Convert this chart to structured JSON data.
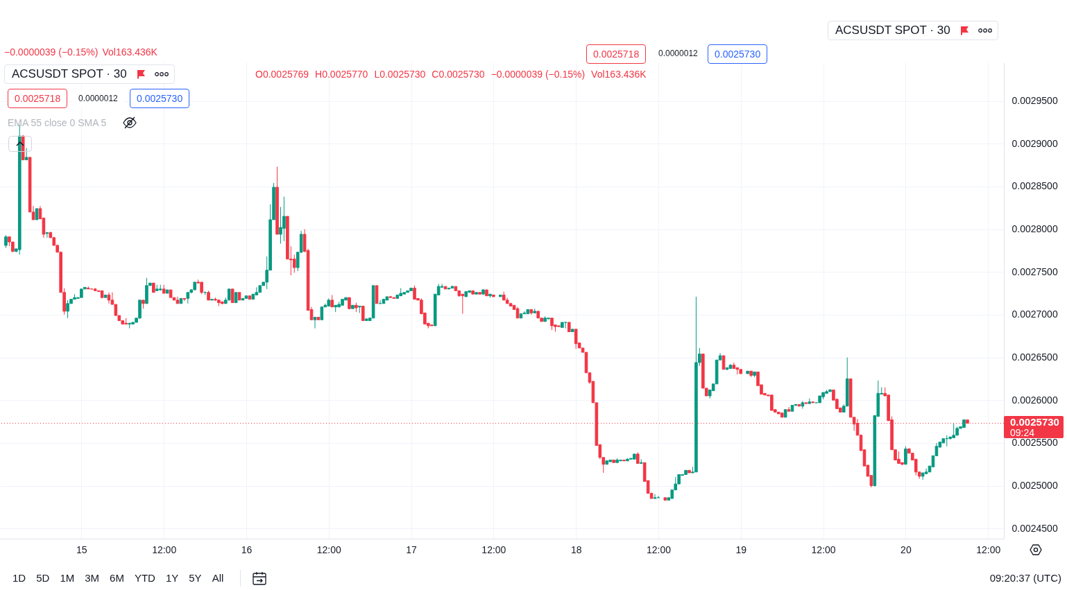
{
  "chart_data": {
    "type": "candlestick",
    "title": "ACSUSDT SPOT · 30",
    "x": [
      "--03-14T13:00",
      "--03-14T13:30",
      "--03-14T14:00",
      "--03-14T14:30",
      "--03-14T15:00",
      "--03-14T15:30",
      "--03-14T16:00",
      "--03-14T16:30",
      "--03-14T17:00",
      "--03-14T17:30",
      "--03-14T18:00",
      "--03-14T18:30",
      "--03-14T19:00",
      "--03-14T19:30",
      "--03-14T20:00",
      "--03-14T20:30",
      "--03-14T21:00",
      "--03-14T21:30",
      "--03-14T22:00",
      "--03-14T22:30",
      "--03-14T23:00",
      "--03-14T23:30",
      "--03-15T00:00",
      "--03-15T00:30",
      "--03-15T01:00",
      "--03-15T01:30",
      "--03-15T02:00",
      "--03-15T02:30",
      "--03-15T03:00",
      "--03-15T03:30",
      "--03-15T04:00",
      "--03-15T04:30",
      "--03-15T05:00",
      "--03-15T05:30",
      "--03-15T06:00",
      "--03-15T06:30",
      "--03-15T07:00",
      "--03-15T07:30",
      "--03-15T08:00",
      "--03-15T08:30",
      "--03-15T09:00",
      "--03-15T09:30",
      "--03-15T10:00",
      "--03-15T10:30",
      "--03-15T11:00",
      "--03-15T11:30",
      "--03-15T12:00",
      "--03-15T12:30",
      "--03-15T13:00",
      "--03-15T13:30",
      "--03-15T14:00",
      "--03-15T14:30",
      "--03-15T15:00",
      "--03-15T15:30",
      "--03-15T16:00",
      "--03-15T16:30",
      "--03-15T17:00",
      "--03-15T17:30",
      "--03-15T18:00",
      "--03-15T18:30",
      "--03-15T19:00",
      "--03-15T19:30",
      "--03-15T20:00",
      "--03-15T20:30",
      "--03-15T21:00",
      "--03-15T21:30",
      "--03-15T22:00",
      "--03-15T22:30",
      "--03-15T23:00",
      "--03-15T23:30",
      "--03-16T00:00",
      "--03-16T00:30",
      "--03-16T01:00",
      "--03-16T01:30",
      "--03-16T02:00",
      "--03-16T02:30",
      "--03-16T03:00",
      "--03-16T03:30",
      "--03-16T04:00",
      "--03-16T04:30",
      "--03-16T05:00",
      "--03-16T05:30",
      "--03-16T06:00",
      "--03-16T06:30",
      "--03-16T07:00",
      "--03-16T07:30",
      "--03-16T08:00",
      "--03-16T08:30",
      "--03-16T09:00",
      "--03-16T09:30",
      "--03-16T10:00",
      "--03-16T10:30",
      "--03-16T11:00",
      "--03-16T11:30",
      "--03-16T12:00",
      "--03-16T12:30",
      "--03-16T13:00",
      "--03-16T13:30",
      "--03-16T14:00",
      "--03-16T14:30",
      "--03-16T15:00",
      "--03-16T15:30",
      "--03-16T16:00",
      "--03-16T16:30",
      "--03-16T17:00",
      "--03-16T17:30",
      "--03-16T18:00",
      "--03-16T18:30",
      "--03-16T19:00",
      "--03-16T19:30",
      "--03-16T20:00",
      "--03-16T20:30",
      "--03-16T21:00",
      "--03-16T21:30",
      "--03-16T22:00",
      "--03-16T22:30",
      "--03-16T23:00",
      "--03-16T23:30",
      "--03-17T00:00",
      "--03-17T00:30",
      "--03-17T01:00",
      "--03-17T01:30",
      "--03-17T02:00",
      "--03-17T02:30",
      "--03-17T03:00",
      "--03-17T03:30",
      "--03-17T04:00",
      "--03-17T04:30",
      "--03-17T05:00",
      "--03-17T05:30",
      "--03-17T06:00",
      "--03-17T06:30",
      "--03-17T07:00",
      "--03-17T07:30",
      "--03-17T08:00",
      "--03-17T08:30",
      "--03-17T09:00",
      "--03-17T09:30",
      "--03-17T10:00",
      "--03-17T10:30",
      "--03-17T11:00",
      "--03-17T11:30",
      "--03-17T12:00",
      "--03-17T13:00",
      "--03-17T13:30",
      "--03-17T14:00",
      "--03-17T14:30",
      "--03-17T15:00",
      "--03-17T15:30",
      "--03-17T16:00",
      "--03-17T16:30",
      "--03-17T17:00",
      "--03-17T17:30",
      "--03-17T18:00",
      "--03-17T18:30",
      "--03-17T19:00",
      "--03-17T19:30",
      "--03-17T20:00",
      "--03-17T20:30",
      "--03-17T21:00",
      "--03-17T21:30",
      "--03-17T22:00",
      "--03-17T22:30",
      "--03-17T23:00",
      "--03-17T23:30",
      "--03-18T00:00",
      "--03-18T00:30",
      "--03-18T01:00",
      "--03-18T01:30",
      "--03-18T02:00",
      "--03-18T02:30",
      "--03-18T03:00",
      "--03-18T03:30",
      "--03-18T04:00",
      "--03-18T04:30",
      "--03-18T05:00",
      "--03-18T05:30",
      "--03-18T06:00",
      "--03-18T06:30",
      "--03-18T07:00",
      "--03-18T07:30",
      "--03-18T08:00",
      "--03-18T08:30",
      "--03-18T09:00",
      "--03-18T09:30",
      "--03-18T10:00",
      "--03-18T10:30",
      "--03-18T11:00",
      "--03-18T11:30",
      "--03-18T12:00",
      "--03-18T13:00",
      "--03-18T13:30",
      "--03-18T14:00",
      "--03-18T14:30",
      "--03-18T15:00",
      "--03-18T15:30",
      "--03-18T16:00",
      "--03-18T16:30",
      "--03-18T17:00",
      "--03-18T17:30",
      "--03-18T18:00",
      "--03-18T18:30",
      "--03-18T19:00",
      "--03-18T19:30",
      "--03-18T20:00",
      "--03-18T20:30",
      "--03-18T21:00",
      "--03-18T21:30",
      "--03-18T22:00",
      "--03-18T22:30",
      "--03-18T23:00",
      "--03-18T23:30",
      "--03-19T00:00",
      "--03-19T01:00",
      "--03-19T01:30",
      "--03-19T02:00",
      "--03-19T02:30",
      "--03-19T03:00",
      "--03-19T03:30",
      "--03-19T04:00",
      "--03-19T04:30",
      "--03-19T05:00",
      "--03-19T05:30",
      "--03-19T06:00",
      "--03-19T06:30",
      "--03-19T07:00",
      "--03-19T07:30",
      "--03-19T08:00",
      "--03-19T08:30",
      "--03-19T09:00",
      "--03-19T09:30",
      "--03-19T10:00",
      "--03-19T10:30",
      "--03-19T11:00",
      "--03-19T11:30",
      "--03-19T12:00",
      "--03-19T12:30",
      "--03-19T13:00",
      "--03-19T13:30",
      "--03-19T14:00",
      "--03-19T14:30",
      "--03-19T15:00",
      "--03-19T15:30",
      "--03-19T16:00",
      "--03-19T16:30",
      "--03-19T17:00",
      "--03-19T17:30",
      "--03-19T18:00",
      "--03-19T18:30",
      "--03-19T19:00",
      "--03-19T19:30",
      "--03-19T20:00",
      "--03-19T20:30",
      "--03-19T21:00",
      "--03-19T21:30",
      "--03-19T22:00",
      "--03-19T22:30",
      "--03-19T23:00",
      "--03-19T23:30",
      "--03-20T00:00",
      "--03-20T00:30",
      "--03-20T01:00",
      "--03-20T01:30",
      "--03-20T02:00",
      "--03-20T02:30",
      "--03-20T03:00",
      "--03-20T03:30",
      "--03-20T04:00",
      "--03-20T04:30",
      "--03-20T05:00",
      "--03-20T05:30",
      "--03-20T06:00",
      "--03-20T06:30",
      "--03-20T07:00",
      "--03-20T07:30",
      "--03-20T08:00",
      "--03-20T08:30",
      "--03-20T09:00"
    ],
    "ohlc": [
      [
        0.002781,
        0.002793,
        0.002778,
        0.002791
      ],
      [
        0.002791,
        0.002791,
        0.00278,
        0.002785
      ],
      [
        0.002785,
        0.002785,
        0.002773,
        0.002774
      ],
      [
        0.002774,
        0.002777,
        0.002773,
        0.002777
      ],
      [
        0.002776,
        0.002922,
        0.00277,
        0.002909
      ],
      [
        0.002909,
        0.00291,
        0.002881,
        0.002881
      ],
      [
        0.002881,
        0.002895,
        0.002881,
        0.002884
      ],
      [
        0.002884,
        0.002884,
        0.00282,
        0.00282
      ],
      [
        0.00282,
        0.002827,
        0.002811,
        0.002811
      ],
      [
        0.002811,
        0.002824,
        0.002811,
        0.002824
      ],
      [
        0.002824,
        0.002827,
        0.002812,
        0.002812
      ],
      [
        0.002813,
        0.002813,
        0.00279,
        0.002794
      ],
      [
        0.002795,
        0.002796,
        0.00279,
        0.002796
      ],
      [
        0.002796,
        0.002797,
        0.00279,
        0.00279
      ],
      [
        0.00279,
        0.002791,
        0.002781,
        0.002781
      ],
      [
        0.002781,
        0.002782,
        0.002773,
        0.002773
      ],
      [
        0.002773,
        0.002774,
        0.002726,
        0.002726
      ],
      [
        0.002726,
        0.002731,
        0.0027,
        0.002704
      ],
      [
        0.002704,
        0.002717,
        0.002696,
        0.002713
      ],
      [
        0.002713,
        0.002718,
        0.002713,
        0.002718
      ],
      [
        0.002718,
        0.002724,
        0.002718,
        0.00272
      ],
      [
        0.002719,
        0.00272,
        0.002719,
        0.00272
      ],
      [
        0.00272,
        0.00273,
        0.00272,
        0.00273
      ],
      [
        0.00273,
        0.002732,
        0.00273,
        0.002732
      ],
      [
        0.002731,
        0.002733,
        0.00273,
        0.00273
      ],
      [
        0.00273,
        0.00273,
        0.00273,
        0.00273
      ],
      [
        0.00273,
        0.002731,
        0.002728,
        0.002728
      ],
      [
        0.002728,
        0.002728,
        0.002727,
        0.002727
      ],
      [
        0.002728,
        0.002728,
        0.002719,
        0.00272
      ],
      [
        0.00272,
        0.002723,
        0.00272,
        0.002723
      ],
      [
        0.002723,
        0.002726,
        0.002713,
        0.002717
      ],
      [
        0.002717,
        0.002726,
        0.002712,
        0.002712
      ],
      [
        0.002712,
        0.002712,
        0.002699,
        0.002699
      ],
      [
        0.002699,
        0.002699,
        0.002693,
        0.002693
      ],
      [
        0.002693,
        0.002693,
        0.002689,
        0.002689
      ],
      [
        0.00269,
        0.002696,
        0.002689,
        0.002689
      ],
      [
        0.002689,
        0.00269,
        0.002684,
        0.00269
      ],
      [
        0.002689,
        0.002691,
        0.002689,
        0.002691
      ],
      [
        0.002691,
        0.002696,
        0.002691,
        0.002696
      ],
      [
        0.002696,
        0.002717,
        0.002695,
        0.002717
      ],
      [
        0.002717,
        0.002717,
        0.002707,
        0.002713
      ],
      [
        0.002713,
        0.002743,
        0.002713,
        0.002734
      ],
      [
        0.002734,
        0.002737,
        0.002734,
        0.002737
      ],
      [
        0.002737,
        0.002737,
        0.002726,
        0.002726
      ],
      [
        0.002728,
        0.002735,
        0.002728,
        0.00273
      ],
      [
        0.002729,
        0.002735,
        0.002728,
        0.00273
      ],
      [
        0.00273,
        0.002735,
        0.002725,
        0.002725
      ],
      [
        0.002725,
        0.002729,
        0.002725,
        0.002729
      ],
      [
        0.002729,
        0.002729,
        0.00272,
        0.00272
      ],
      [
        0.00272,
        0.00272,
        0.002717,
        0.002717
      ],
      [
        0.002717,
        0.002721,
        0.002713,
        0.002713
      ],
      [
        0.002713,
        0.002719,
        0.002713,
        0.002719
      ],
      [
        0.002719,
        0.002719,
        0.002716,
        0.002718
      ],
      [
        0.002719,
        0.002726,
        0.002713,
        0.002726
      ],
      [
        0.002726,
        0.00273,
        0.002725,
        0.002729
      ],
      [
        0.002729,
        0.002738,
        0.002729,
        0.002738
      ],
      [
        0.002738,
        0.002741,
        0.002737,
        0.002737
      ],
      [
        0.002738,
        0.002738,
        0.002724,
        0.002726
      ],
      [
        0.002726,
        0.002727,
        0.002723,
        0.002726
      ],
      [
        0.002726,
        0.002728,
        0.002717,
        0.002717
      ],
      [
        0.002717,
        0.002718,
        0.002717,
        0.002718
      ],
      [
        0.002718,
        0.00272,
        0.002716,
        0.002717
      ],
      [
        0.002717,
        0.002718,
        0.00271,
        0.002714
      ],
      [
        0.002715,
        0.002715,
        0.002712,
        0.002713
      ],
      [
        0.002713,
        0.00272,
        0.002713,
        0.002717
      ],
      [
        0.002717,
        0.00273,
        0.002717,
        0.00273
      ],
      [
        0.00273,
        0.00273,
        0.002714,
        0.002714
      ],
      [
        0.002714,
        0.002726,
        0.002714,
        0.002726
      ],
      [
        0.002726,
        0.002726,
        0.002717,
        0.002717
      ],
      [
        0.002717,
        0.002719,
        0.002717,
        0.002719
      ],
      [
        0.002719,
        0.002722,
        0.002719,
        0.002722
      ],
      [
        0.002722,
        0.002722,
        0.002718,
        0.002718
      ],
      [
        0.002718,
        0.002724,
        0.002718,
        0.002724
      ],
      [
        0.002723,
        0.002732,
        0.002723,
        0.002726
      ],
      [
        0.002726,
        0.002734,
        0.002726,
        0.002734
      ],
      [
        0.002734,
        0.002738,
        0.002734,
        0.002738
      ],
      [
        0.002738,
        0.002768,
        0.00273,
        0.002752
      ],
      [
        0.002752,
        0.002829,
        0.002752,
        0.002811
      ],
      [
        0.002811,
        0.002854,
        0.002811,
        0.002849
      ],
      [
        0.002849,
        0.002873,
        0.002794,
        0.002794
      ],
      [
        0.002794,
        0.002826,
        0.002783,
        0.002802
      ],
      [
        0.002801,
        0.002838,
        0.002786,
        0.002815
      ],
      [
        0.002815,
        0.002815,
        0.002765,
        0.002765
      ],
      [
        0.002765,
        0.00278,
        0.002746,
        0.002764
      ],
      [
        0.002765,
        0.00277,
        0.002749,
        0.002755
      ],
      [
        0.002755,
        0.002773,
        0.002751,
        0.002773
      ],
      [
        0.002773,
        0.002798,
        0.002772,
        0.002794
      ],
      [
        0.002794,
        0.0028,
        0.002773,
        0.002774
      ],
      [
        0.002775,
        0.002777,
        0.002705,
        0.002705
      ],
      [
        0.002706,
        0.002709,
        0.002694,
        0.002694
      ],
      [
        0.002694,
        0.002697,
        0.002684,
        0.002697
      ],
      [
        0.002697,
        0.002697,
        0.002694,
        0.002694
      ],
      [
        0.002694,
        0.002709,
        0.002694,
        0.002709
      ],
      [
        0.002709,
        0.002713,
        0.002709,
        0.002711
      ],
      [
        0.00271,
        0.002719,
        0.00271,
        0.002717
      ],
      [
        0.002717,
        0.002723,
        0.002709,
        0.002709
      ],
      [
        0.002709,
        0.002711,
        0.002703,
        0.002711
      ],
      [
        0.002709,
        0.002715,
        0.002709,
        0.002712
      ],
      [
        0.002711,
        0.002718,
        0.002711,
        0.002718
      ],
      [
        0.002717,
        0.00272,
        0.002717,
        0.00272
      ],
      [
        0.00272,
        0.00272,
        0.002706,
        0.002707
      ],
      [
        0.002707,
        0.002711,
        0.002707,
        0.002711
      ],
      [
        0.002711,
        0.002714,
        0.002703,
        0.002708
      ],
      [
        0.002709,
        0.00271,
        0.002702,
        0.00271
      ],
      [
        0.00271,
        0.00271,
        0.002693,
        0.002693
      ],
      [
        0.002693,
        0.002696,
        0.002693,
        0.002695
      ],
      [
        0.002693,
        0.002696,
        0.002693,
        0.002696
      ],
      [
        0.002696,
        0.002734,
        0.002696,
        0.002734
      ],
      [
        0.002734,
        0.002734,
        0.002713,
        0.002713
      ],
      [
        0.002713,
        0.002717,
        0.002713,
        0.002713
      ],
      [
        0.002713,
        0.002718,
        0.002713,
        0.002718
      ],
      [
        0.002717,
        0.002721,
        0.002717,
        0.002721
      ],
      [
        0.002721,
        0.002722,
        0.00272,
        0.00272
      ],
      [
        0.00272,
        0.00272,
        0.002719,
        0.002719
      ],
      [
        0.002719,
        0.002723,
        0.002719,
        0.002723
      ],
      [
        0.002722,
        0.002731,
        0.002722,
        0.002725
      ],
      [
        0.002724,
        0.002726,
        0.002724,
        0.002726
      ],
      [
        0.002726,
        0.002728,
        0.002726,
        0.002728
      ],
      [
        0.002728,
        0.002731,
        0.002728,
        0.002731
      ],
      [
        0.002731,
        0.002734,
        0.002718,
        0.002718
      ],
      [
        0.002719,
        0.002719,
        0.002717,
        0.002717
      ],
      [
        0.002717,
        0.002719,
        0.002701,
        0.002701
      ],
      [
        0.002702,
        0.002702,
        0.002689,
        0.002689
      ],
      [
        0.00269,
        0.00269,
        0.002684,
        0.002687
      ],
      [
        0.002688,
        0.002688,
        0.002687,
        0.002687
      ],
      [
        0.002687,
        0.002724,
        0.002687,
        0.002724
      ],
      [
        0.002723,
        0.002736,
        0.002723,
        0.002733
      ],
      [
        0.002732,
        0.002736,
        0.002732,
        0.002733
      ],
      [
        0.002733,
        0.002733,
        0.00273,
        0.00273
      ],
      [
        0.00273,
        0.002731,
        0.00273,
        0.002731
      ],
      [
        0.002731,
        0.002734,
        0.002731,
        0.002733
      ],
      [
        0.002733,
        0.002733,
        0.002728,
        0.002728
      ],
      [
        0.002728,
        0.002728,
        0.002721,
        0.002722
      ],
      [
        0.002724,
        0.002724,
        0.002701,
        0.002722
      ],
      [
        0.002721,
        0.002727,
        0.002721,
        0.002727
      ],
      [
        0.002726,
        0.002728,
        0.002726,
        0.002728
      ],
      [
        0.002728,
        0.002728,
        0.002724,
        0.002724
      ],
      [
        0.002724,
        0.002726,
        0.002724,
        0.002726
      ],
      [
        0.002726,
        0.002726,
        0.002724,
        0.002724
      ],
      [
        0.002724,
        0.00273,
        0.002724,
        0.002729
      ],
      [
        0.002729,
        0.002729,
        0.002722,
        0.002722
      ],
      [
        0.002722,
        0.002724,
        0.00272,
        0.002724
      ],
      [
        0.002723,
        0.002723,
        0.002721,
        0.002721
      ],
      [
        0.002721,
        0.002723,
        0.002721,
        0.002723
      ],
      [
        0.002723,
        0.002727,
        0.002717,
        0.002717
      ],
      [
        0.002717,
        0.00272,
        0.002713,
        0.002713
      ],
      [
        0.002713,
        0.002714,
        0.00271,
        0.00271
      ],
      [
        0.002711,
        0.002711,
        0.002706,
        0.002706
      ],
      [
        0.002707,
        0.002709,
        0.002696,
        0.002696
      ],
      [
        0.002696,
        0.002701,
        0.002696,
        0.002701
      ],
      [
        0.002701,
        0.002704,
        0.002701,
        0.002702
      ],
      [
        0.002701,
        0.002706,
        0.002701,
        0.002706
      ],
      [
        0.002706,
        0.002706,
        0.0027,
        0.002702
      ],
      [
        0.002702,
        0.002707,
        0.002702,
        0.002704
      ],
      [
        0.002704,
        0.002704,
        0.002696,
        0.002696
      ],
      [
        0.002696,
        0.002696,
        0.002692,
        0.002692
      ],
      [
        0.002692,
        0.002698,
        0.002692,
        0.002696
      ],
      [
        0.002695,
        0.002696,
        0.002695,
        0.002696
      ],
      [
        0.002696,
        0.002696,
        0.002682,
        0.002687
      ],
      [
        0.002688,
        0.002688,
        0.00268,
        0.002686
      ],
      [
        0.002687,
        0.002687,
        0.002686,
        0.002686
      ],
      [
        0.002685,
        0.002691,
        0.002685,
        0.002691
      ],
      [
        0.002691,
        0.002691,
        0.002684,
        0.002691
      ],
      [
        0.002691,
        0.002691,
        0.00268,
        0.00268
      ],
      [
        0.00268,
        0.002683,
        0.00268,
        0.002683
      ],
      [
        0.002683,
        0.002683,
        0.00266,
        0.002666
      ],
      [
        0.002667,
        0.002667,
        0.002661,
        0.002661
      ],
      [
        0.002661,
        0.002661,
        0.002656,
        0.002656
      ],
      [
        0.002656,
        0.002656,
        0.002632,
        0.002632
      ],
      [
        0.002632,
        0.002632,
        0.002619,
        0.002621
      ],
      [
        0.002622,
        0.002622,
        0.002597,
        0.002597
      ],
      [
        0.002597,
        0.002597,
        0.002547,
        0.002547
      ],
      [
        0.002548,
        0.002548,
        0.002531,
        0.002533
      ],
      [
        0.002533,
        0.002533,
        0.002515,
        0.002525
      ],
      [
        0.002525,
        0.00253,
        0.002525,
        0.002529
      ],
      [
        0.002528,
        0.00253,
        0.002528,
        0.00253
      ],
      [
        0.00253,
        0.00253,
        0.002527,
        0.002527
      ],
      [
        0.002527,
        0.002532,
        0.002527,
        0.00253
      ],
      [
        0.002529,
        0.00253,
        0.002529,
        0.00253
      ],
      [
        0.00253,
        0.00253,
        0.002529,
        0.002529
      ],
      [
        0.002529,
        0.002532,
        0.002529,
        0.002531
      ],
      [
        0.002531,
        0.002532,
        0.002531,
        0.002532
      ],
      [
        0.002531,
        0.002537,
        0.002531,
        0.002537
      ],
      [
        0.002537,
        0.002539,
        0.002526,
        0.002526
      ],
      [
        0.002526,
        0.002531,
        0.002526,
        0.002527
      ],
      [
        0.002527,
        0.002527,
        0.002505,
        0.002505
      ],
      [
        0.002506,
        0.002506,
        0.002491,
        0.002491
      ],
      [
        0.002491,
        0.002492,
        0.002485,
        0.002485
      ],
      [
        0.002485,
        0.00249,
        0.002485,
        0.002486
      ],
      [
        0.002486,
        0.002488,
        0.002486,
        0.002486
      ],
      [
        0.002486,
        0.002486,
        0.002483,
        0.002483
      ],
      [
        0.002483,
        0.002486,
        0.002483,
        0.002486
      ],
      [
        0.002485,
        0.002495,
        0.002485,
        0.002495
      ],
      [
        0.002495,
        0.00251,
        0.002495,
        0.002502
      ],
      [
        0.002502,
        0.002513,
        0.002502,
        0.002513
      ],
      [
        0.002512,
        0.002513,
        0.002512,
        0.002513
      ],
      [
        0.002513,
        0.002518,
        0.002513,
        0.002518
      ],
      [
        0.002518,
        0.002518,
        0.002515,
        0.002515
      ],
      [
        0.002515,
        0.002522,
        0.002515,
        0.002516
      ],
      [
        0.002516,
        0.002721,
        0.002516,
        0.002644
      ],
      [
        0.002644,
        0.002661,
        0.00264,
        0.002654
      ],
      [
        0.002654,
        0.002654,
        0.002614,
        0.002614
      ],
      [
        0.002614,
        0.002614,
        0.002605,
        0.002605
      ],
      [
        0.002605,
        0.002612,
        0.002602,
        0.002612
      ],
      [
        0.002611,
        0.002619,
        0.002611,
        0.002619
      ],
      [
        0.002619,
        0.002647,
        0.002619,
        0.002647
      ],
      [
        0.002647,
        0.002655,
        0.002647,
        0.002652
      ],
      [
        0.002652,
        0.002652,
        0.002636,
        0.002636
      ],
      [
        0.002636,
        0.002638,
        0.002635,
        0.002638
      ],
      [
        0.002637,
        0.002642,
        0.002637,
        0.002641
      ],
      [
        0.002641,
        0.002644,
        0.002637,
        0.002637
      ],
      [
        0.002638,
        0.002638,
        0.00263,
        0.002636
      ],
      [
        0.002636,
        0.002636,
        0.002631,
        0.002631
      ],
      [
        0.002631,
        0.002634,
        0.002631,
        0.002634
      ],
      [
        0.002634,
        0.002634,
        0.002627,
        0.002629
      ],
      [
        0.002629,
        0.002633,
        0.002627,
        0.002633
      ],
      [
        0.002633,
        0.002633,
        0.002617,
        0.002617
      ],
      [
        0.002618,
        0.002618,
        0.002607,
        0.002607
      ],
      [
        0.002608,
        0.002608,
        0.002606,
        0.002606
      ],
      [
        0.002606,
        0.002606,
        0.002605,
        0.002605
      ],
      [
        0.002606,
        0.002606,
        0.002588,
        0.002588
      ],
      [
        0.002589,
        0.002589,
        0.002586,
        0.002586
      ],
      [
        0.002586,
        0.002586,
        0.002584,
        0.002584
      ],
      [
        0.002585,
        0.002585,
        0.00258,
        0.00258
      ],
      [
        0.00258,
        0.002589,
        0.00258,
        0.002589
      ],
      [
        0.002589,
        0.002592,
        0.002587,
        0.002587
      ],
      [
        0.002587,
        0.002594,
        0.002587,
        0.002594
      ],
      [
        0.002594,
        0.002595,
        0.002593,
        0.002595
      ],
      [
        0.002595,
        0.002595,
        0.002593,
        0.002593
      ],
      [
        0.002593,
        0.002599,
        0.00259,
        0.002597
      ],
      [
        0.002597,
        0.002597,
        0.002596,
        0.002596
      ],
      [
        0.002596,
        0.002602,
        0.002596,
        0.002598
      ],
      [
        0.002598,
        0.002598,
        0.002597,
        0.002597
      ],
      [
        0.002597,
        0.002597,
        0.002597,
        0.002597
      ],
      [
        0.002597,
        0.002605,
        0.002597,
        0.002605
      ],
      [
        0.002604,
        0.002609,
        0.002601,
        0.002609
      ],
      [
        0.002608,
        0.002612,
        0.002608,
        0.00261
      ],
      [
        0.00261,
        0.002613,
        0.00261,
        0.002612
      ],
      [
        0.002612,
        0.002612,
        0.0026,
        0.0026
      ],
      [
        0.002601,
        0.002602,
        0.00259,
        0.00259
      ],
      [
        0.002591,
        0.002591,
        0.002586,
        0.002586
      ],
      [
        0.002586,
        0.002595,
        0.002586,
        0.002593
      ],
      [
        0.002593,
        0.00265,
        0.002593,
        0.002625
      ],
      [
        0.002625,
        0.002625,
        0.00258,
        0.00258
      ],
      [
        0.00258,
        0.00258,
        0.002564,
        0.002572
      ],
      [
        0.002573,
        0.002578,
        0.002559,
        0.002559
      ],
      [
        0.002559,
        0.00256,
        0.002541,
        0.002541
      ],
      [
        0.002542,
        0.002542,
        0.002523,
        0.002523
      ],
      [
        0.002524,
        0.002524,
        0.002511,
        0.002511
      ],
      [
        0.002512,
        0.002512,
        0.002498,
        0.0025
      ],
      [
        0.0025,
        0.002582,
        0.002499,
        0.002582
      ],
      [
        0.002581,
        0.002623,
        0.002581,
        0.002608
      ],
      [
        0.002607,
        0.002615,
        0.002607,
        0.002608
      ],
      [
        0.002608,
        0.002615,
        0.002605,
        0.002605
      ],
      [
        0.002606,
        0.002606,
        0.002576,
        0.002576
      ],
      [
        0.002577,
        0.002581,
        0.002542,
        0.002542
      ],
      [
        0.002542,
        0.002542,
        0.00253,
        0.00253
      ],
      [
        0.002531,
        0.00254,
        0.002526,
        0.002526
      ],
      [
        0.002527,
        0.002527,
        0.002524,
        0.002525
      ],
      [
        0.002525,
        0.002546,
        0.002525,
        0.002543
      ],
      [
        0.002543,
        0.002544,
        0.002538,
        0.002538
      ],
      [
        0.002538,
        0.002538,
        0.00253,
        0.00253
      ],
      [
        0.002531,
        0.002531,
        0.002512,
        0.002516
      ],
      [
        0.002516,
        0.002516,
        0.002508,
        0.002511
      ],
      [
        0.002511,
        0.002515,
        0.002507,
        0.002515
      ],
      [
        0.002514,
        0.00252,
        0.002514,
        0.002516
      ],
      [
        0.002516,
        0.002523,
        0.002516,
        0.002523
      ],
      [
        0.002522,
        0.002535,
        0.002522,
        0.002535
      ],
      [
        0.002535,
        0.00255,
        0.002535,
        0.002546
      ],
      [
        0.002545,
        0.002551,
        0.002545,
        0.002551
      ],
      [
        0.00255,
        0.002555,
        0.00255,
        0.002555
      ],
      [
        0.002555,
        0.002559,
        0.002546,
        0.002555
      ],
      [
        0.002555,
        0.002557,
        0.002554,
        0.002557
      ],
      [
        0.002556,
        0.002573,
        0.002556,
        0.002559
      ],
      [
        0.002559,
        0.002569,
        0.002559,
        0.002567
      ],
      [
        0.002567,
        0.002569,
        0.002567,
        0.002569
      ],
      [
        0.002568,
        0.002577,
        0.002568,
        0.002577
      ],
      [
        0.0025769,
        0.002577,
        0.002573,
        0.002573
      ]
    ],
    "colors": [
      "#089981",
      "#f23645",
      "#f23645",
      "#089981",
      "#089981",
      "#f23645",
      "#089981",
      "#f23645",
      "#f23645",
      "#089981",
      "#f23645",
      "#f23645",
      "#089981",
      "#f23645",
      "#f23645",
      "#f23645",
      "#f23645",
      "#f23645",
      "#089981",
      "#089981",
      "#089981",
      "#089981",
      "#089981",
      "#089981",
      "#f23645",
      "#f23645",
      "#f23645",
      "#f23645",
      "#f23645",
      "#089981",
      "#f23645",
      "#f23645",
      "#f23645",
      "#f23645",
      "#f23645",
      "#f23645",
      "#089981",
      "#089981",
      "#089981",
      "#089981",
      "#f23645",
      "#089981",
      "#089981",
      "#f23645",
      "#089981",
      "#089981",
      "#f23645",
      "#089981",
      "#f23645",
      "#f23645",
      "#f23645",
      "#089981",
      "#f23645",
      "#089981",
      "#089981",
      "#089981",
      "#f23645",
      "#f23645",
      "#089981",
      "#f23645",
      "#089981",
      "#f23645",
      "#f23645",
      "#f23645",
      "#089981",
      "#089981",
      "#f23645",
      "#089981",
      "#f23645",
      "#089981",
      "#089981",
      "#f23645",
      "#089981",
      "#089981",
      "#089981",
      "#089981",
      "#089981",
      "#089981",
      "#089981",
      "#f23645",
      "#089981",
      "#089981",
      "#f23645",
      "#f23645",
      "#f23645",
      "#089981",
      "#089981",
      "#f23645",
      "#f23645",
      "#f23645",
      "#089981",
      "#f23645",
      "#089981",
      "#089981",
      "#089981",
      "#f23645",
      "#089981",
      "#089981",
      "#089981",
      "#089981",
      "#f23645",
      "#089981",
      "#f23645",
      "#089981",
      "#f23645",
      "#089981",
      "#089981",
      "#089981",
      "#f23645",
      "#089981",
      "#089981",
      "#089981",
      "#f23645",
      "#f23645",
      "#089981",
      "#089981",
      "#089981",
      "#089981",
      "#089981",
      "#f23645",
      "#f23645",
      "#f23645",
      "#f23645",
      "#f23645",
      "#f23645",
      "#089981",
      "#089981",
      "#089981",
      "#f23645",
      "#089981",
      "#089981",
      "#f23645",
      "#f23645",
      "#f23645",
      "#089981",
      "#089981",
      "#f23645",
      "#089981",
      "#f23645",
      "#089981",
      "#f23645",
      "#089981",
      "#f23645",
      "#089981",
      "#f23645",
      "#f23645",
      "#f23645",
      "#f23645",
      "#f23645",
      "#089981",
      "#089981",
      "#089981",
      "#f23645",
      "#089981",
      "#f23645",
      "#f23645",
      "#089981",
      "#089981",
      "#f23645",
      "#f23645",
      "#f23645",
      "#089981",
      "#089981",
      "#f23645",
      "#089981",
      "#f23645",
      "#f23645",
      "#f23645",
      "#f23645",
      "#f23645",
      "#f23645",
      "#f23645",
      "#f23645",
      "#f23645",
      "#089981",
      "#089981",
      "#f23645",
      "#089981",
      "#089981",
      "#f23645",
      "#089981",
      "#089981",
      "#089981",
      "#f23645",
      "#089981",
      "#f23645",
      "#f23645",
      "#f23645",
      "#089981",
      "#089981",
      "#f23645",
      "#089981",
      "#089981",
      "#089981",
      "#089981",
      "#089981",
      "#089981",
      "#f23645",
      "#089981",
      "#089981",
      "#089981",
      "#f23645",
      "#f23645",
      "#089981",
      "#089981",
      "#089981",
      "#089981",
      "#f23645",
      "#089981",
      "#089981",
      "#f23645",
      "#f23645",
      "#f23645",
      "#089981",
      "#f23645",
      "#089981",
      "#f23645",
      "#f23645",
      "#f23645",
      "#f23645",
      "#f23645",
      "#f23645",
      "#f23645",
      "#f23645",
      "#089981",
      "#f23645",
      "#089981",
      "#089981",
      "#f23645",
      "#089981",
      "#f23645",
      "#089981",
      "#f23645",
      "#089981",
      "#089981",
      "#089981",
      "#089981",
      "#089981",
      "#f23645",
      "#f23645",
      "#f23645",
      "#089981",
      "#089981",
      "#f23645",
      "#f23645",
      "#f23645",
      "#f23645",
      "#f23645",
      "#f23645",
      "#f23645",
      "#089981",
      "#089981",
      "#089981",
      "#f23645",
      "#f23645",
      "#f23645",
      "#f23645",
      "#f23645",
      "#f23645",
      "#089981",
      "#f23645",
      "#f23645",
      "#f23645",
      "#f23645",
      "#089981",
      "#089981",
      "#089981",
      "#089981",
      "#089981",
      "#089981",
      "#089981",
      "#089981",
      "#089981",
      "#089981",
      "#089981",
      "#089981",
      "#089981",
      "#f23645"
    ],
    "xlim": [
      "--03-14T12:39",
      "--03-20T13:48"
    ],
    "xticks": [
      {
        "value": "--03-15T00:00",
        "label": "15"
      },
      {
        "value": "--03-15T12:00",
        "label": "12:00"
      },
      {
        "value": "--03-16T00:00",
        "label": "16"
      },
      {
        "value": "--03-16T12:00",
        "label": "12:00"
      },
      {
        "value": "--03-17T00:00",
        "label": "17"
      },
      {
        "value": "--03-17T12:00",
        "label": "12:00"
      },
      {
        "value": "--03-18T00:00",
        "label": "18"
      },
      {
        "value": "--03-18T12:00",
        "label": "12:00"
      },
      {
        "value": "--03-19T00:00",
        "label": "19"
      },
      {
        "value": "--03-19T12:00",
        "label": "12:00"
      },
      {
        "value": "--03-20T00:00",
        "label": "20"
      },
      {
        "value": "--03-20T12:00",
        "label": "12:00"
      }
    ],
    "ylim": [
      0.002438,
      0.002995
    ],
    "yticks": [
      {
        "value": 0.00245,
        "label": "0.0024500"
      },
      {
        "value": 0.0025,
        "label": "0.0025000"
      },
      {
        "value": 0.00255,
        "label": "0.0025500"
      },
      {
        "value": 0.0026,
        "label": "0.0026000"
      },
      {
        "value": 0.00265,
        "label": "0.0026500"
      },
      {
        "value": 0.0027,
        "label": "0.0027000"
      },
      {
        "value": 0.00275,
        "label": "0.0027500"
      },
      {
        "value": 0.0028,
        "label": "0.0028000"
      },
      {
        "value": 0.00285,
        "label": "0.0028500"
      },
      {
        "value": 0.0029,
        "label": "0.0029000"
      },
      {
        "value": 0.00295,
        "label": "0.0029500"
      }
    ],
    "grid": true,
    "ref_lines": [
      {
        "axis": "y",
        "value": 0.002573,
        "label": "0.0025730",
        "color": "#f23645",
        "line_style": "dotted"
      }
    ],
    "annotations": [
      "O0.0025769",
      "H0.0025770",
      "L0.0025730",
      "C0.0025730",
      "−0.0000039 (−0.15%)",
      "Vol163.436K",
      "0.0025718",
      "0.0000012",
      "0.0025730",
      "EMA 55 close 0 SMA 5",
      "09:24",
      "1D",
      "5D",
      "1M",
      "3M",
      "6M",
      "YTD",
      "1Y",
      "5Y",
      "All",
      "09:20:37 (UTC)"
    ]
  }
}
